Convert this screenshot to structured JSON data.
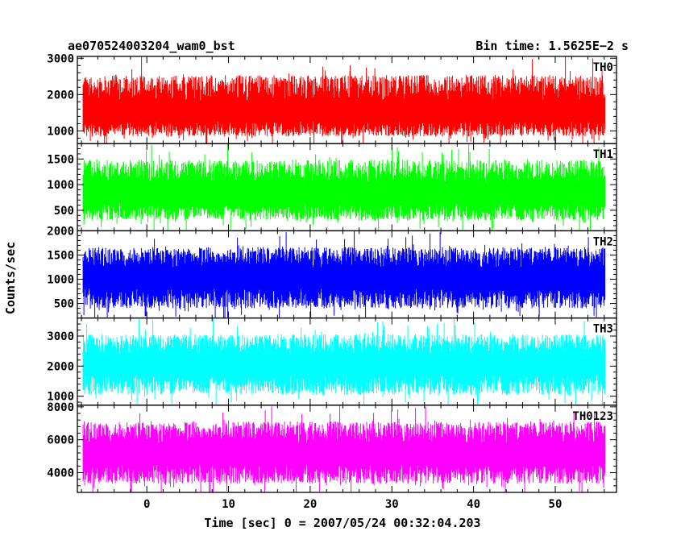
{
  "header": {
    "title": "ae070524003204_wam0_bst",
    "bin_time": "Bin time: 1.5625E−2 s"
  },
  "chart_data": {
    "type": "line",
    "xlabel": "Time [sec] 0 = 2007/05/24 00:32:04.203",
    "ylabel": "Counts/sec",
    "xlim": [
      -8.5,
      57.5
    ],
    "data_xrange": [
      -7.8,
      56.1
    ],
    "bin_time_s": 0.015625,
    "x_ticks": [
      0,
      10,
      20,
      30,
      40,
      50
    ],
    "x_tick_labels": [
      "0",
      "10",
      "20",
      "30",
      "40",
      "50"
    ],
    "panels": [
      {
        "name": "TH0",
        "color": "#ff0000",
        "ylim": [
          650,
          3050
        ],
        "y_ticks": [
          1000,
          2000,
          3000
        ],
        "y_tick_labels": [
          "1000",
          "2000",
          "3000"
        ],
        "mean": 1450,
        "low": 700,
        "high": 3000
      },
      {
        "name": "TH1",
        "color": "#00ff00",
        "ylim": [
          100,
          1800
        ],
        "y_ticks": [
          500,
          1000,
          1500
        ],
        "y_tick_labels": [
          "500",
          "1000",
          "1500"
        ],
        "mean": 800,
        "low": 180,
        "high": 1780
      },
      {
        "name": "TH2",
        "color": "#0000ff",
        "ylim": [
          200,
          2000
        ],
        "y_ticks": [
          500,
          1000,
          1500,
          2000
        ],
        "y_tick_labels": [
          "500",
          "1000",
          "1500",
          "2000"
        ],
        "mean": 1000,
        "low": 250,
        "high": 1950
      },
      {
        "name": "TH3",
        "color": "#00ffff",
        "ylim": [
          700,
          3600
        ],
        "y_ticks": [
          1000,
          2000,
          3000
        ],
        "y_tick_labels": [
          "1000",
          "2000",
          "3000"
        ],
        "mean": 2050,
        "low": 800,
        "high": 3500
      },
      {
        "name": "TH0123",
        "color": "#ff00ff",
        "ylim": [
          2800,
          8100
        ],
        "y_ticks": [
          4000,
          6000,
          8000
        ],
        "y_tick_labels": [
          "4000",
          "6000",
          "8000"
        ],
        "mean": 5050,
        "low": 2900,
        "high": 8000
      }
    ]
  }
}
